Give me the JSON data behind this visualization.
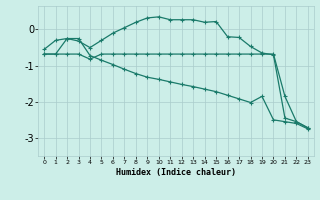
{
  "xlabel": "Humidex (Indice chaleur)",
  "bg_color": "#cceee8",
  "grid_color": "#aacccc",
  "line_color": "#1a7a6a",
  "xlim": [
    -0.5,
    23.5
  ],
  "ylim": [
    -3.5,
    0.65
  ],
  "yticks": [
    0,
    -1,
    -2,
    -3
  ],
  "xticks": [
    0,
    1,
    2,
    3,
    4,
    5,
    6,
    7,
    8,
    9,
    10,
    11,
    12,
    13,
    14,
    15,
    16,
    17,
    18,
    19,
    20,
    21,
    22,
    23
  ],
  "line1_x": [
    0,
    1,
    2,
    3,
    4,
    5,
    6,
    7,
    8,
    9,
    10,
    11,
    12,
    13,
    14,
    15,
    16,
    17,
    18,
    19,
    20,
    21,
    22,
    23
  ],
  "line1_y": [
    -0.55,
    -0.3,
    -0.25,
    -0.32,
    -0.5,
    -0.3,
    -0.1,
    0.05,
    0.2,
    0.32,
    0.35,
    0.27,
    0.27,
    0.27,
    0.2,
    0.22,
    -0.2,
    -0.22,
    -0.47,
    -0.65,
    -0.7,
    -2.45,
    -2.55,
    -2.72
  ],
  "line2_x": [
    0,
    1,
    2,
    3,
    4,
    5,
    6,
    7,
    8,
    9,
    10,
    11,
    12,
    13,
    14,
    15,
    16,
    17,
    18,
    19,
    20,
    21,
    22,
    23
  ],
  "line2_y": [
    -0.68,
    -0.68,
    -0.68,
    -0.68,
    -0.82,
    -0.68,
    -0.68,
    -0.68,
    -0.68,
    -0.68,
    -0.68,
    -0.68,
    -0.68,
    -0.68,
    -0.68,
    -0.68,
    -0.68,
    -0.68,
    -0.68,
    -0.68,
    -0.68,
    -1.85,
    -2.55,
    -2.72
  ],
  "line3_x": [
    0,
    1,
    2,
    3,
    4,
    5,
    6,
    7,
    8,
    9,
    10,
    11,
    12,
    13,
    14,
    15,
    16,
    17,
    18,
    19,
    20,
    21,
    22,
    23
  ],
  "line3_y": [
    -0.68,
    -0.68,
    -0.25,
    -0.25,
    -0.72,
    -0.85,
    -0.97,
    -1.1,
    -1.22,
    -1.32,
    -1.38,
    -1.45,
    -1.52,
    -1.58,
    -1.65,
    -1.72,
    -1.82,
    -1.92,
    -2.02,
    -1.85,
    -2.5,
    -2.55,
    -2.6,
    -2.75
  ],
  "marker": "+",
  "markersize": 3,
  "linewidth": 0.9
}
